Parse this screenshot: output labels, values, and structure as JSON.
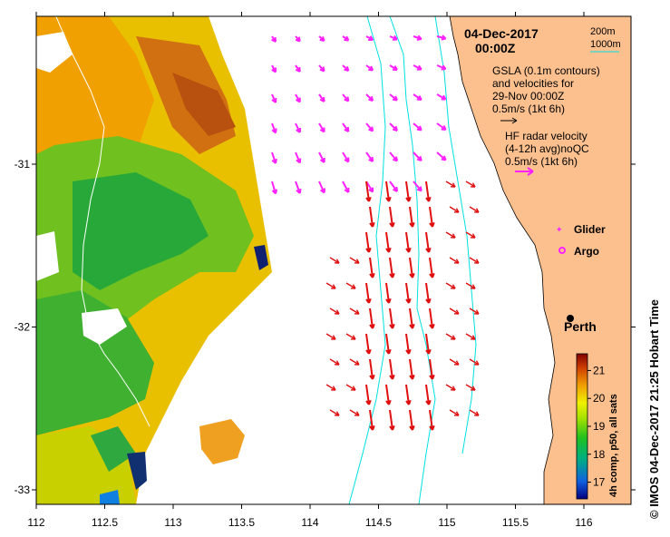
{
  "title": {
    "date": "04-Dec-2017",
    "time": "00:00Z"
  },
  "depth_legend": {
    "line1": "200m",
    "line2": "1000m",
    "contour_color": "#00e0e0"
  },
  "gsla_note": {
    "line1": "GSLA (0.1m contours)",
    "line2": "and velocities for",
    "line3": "29-Nov 00:00Z",
    "scale": "0.5m/s (1kt 6h)"
  },
  "hf_note": {
    "line1": "HF radar velocity",
    "line2": "(4-12h avg)noQC",
    "scale": "0.5m/s (1kt 6h)"
  },
  "markers": {
    "glider": "Glider",
    "argo": "Argo",
    "city": "Perth"
  },
  "axes": {
    "x_ticks": [
      "112",
      "112.5",
      "113",
      "113.5",
      "114",
      "114.5",
      "115",
      "115.5",
      "116"
    ],
    "y_ticks": [
      "-31",
      "-32",
      "-33"
    ]
  },
  "colorbar": {
    "ticks": [
      "21",
      "20",
      "19",
      "18",
      "17"
    ],
    "label": "4h comp, p50, all sats",
    "range": [
      16.4,
      21.6
    ]
  },
  "credit": "© IMOS 04-Dec-2017 21:25 Hobart Time",
  "colors": {
    "land": "#fcc08f",
    "gsla_arrows": "#ff22ff",
    "hf_arrows": "#e01010",
    "depth_contour": "#00e0e0"
  }
}
